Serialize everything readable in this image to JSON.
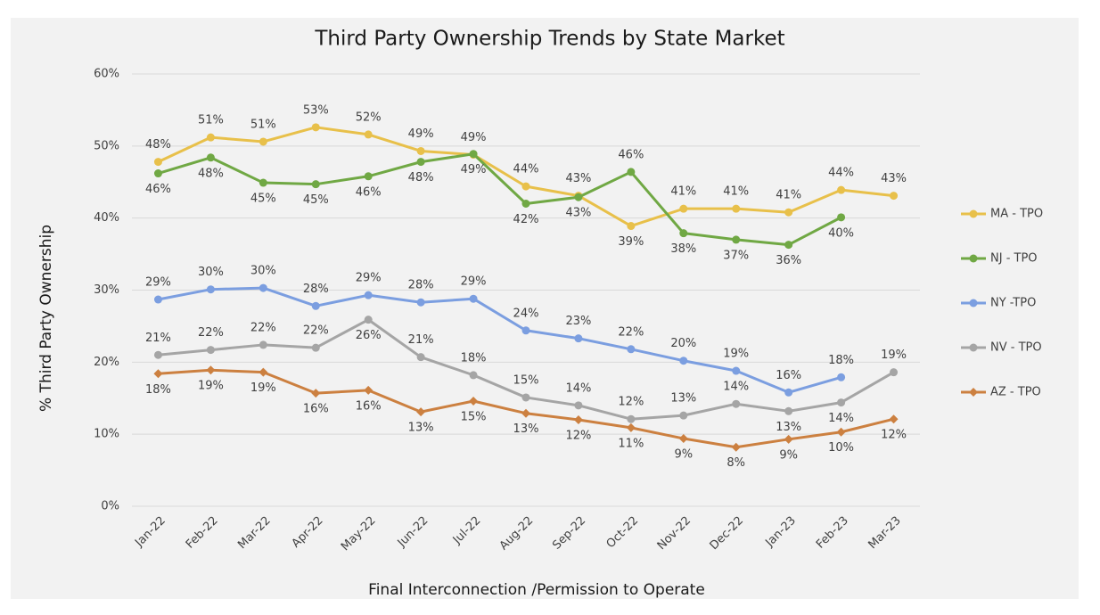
{
  "chart_data": {
    "type": "line",
    "title": "Third Party Ownership Trends by State Market",
    "y_label": "% Third Party Ownership",
    "x_label": "Final Interconnection /Permission to Operate",
    "categories": [
      "Jan-22",
      "Feb-22",
      "Mar-22",
      "Apr-22",
      "May-22",
      "Jun-22",
      "Jul-22",
      "Aug-22",
      "Sep-22",
      "Oct-22",
      "Nov-22",
      "Dec-22",
      "Jan-23",
      "Feb-23",
      "Mar-23"
    ],
    "ylim": [
      0,
      60
    ],
    "yticks": [
      {
        "value": 0,
        "label": "0%"
      },
      {
        "value": 10,
        "label": "10%"
      },
      {
        "value": 20,
        "label": "20%"
      },
      {
        "value": 30,
        "label": "30%"
      },
      {
        "value": 40,
        "label": "40%"
      },
      {
        "value": 50,
        "label": "50%"
      },
      {
        "value": 60,
        "label": "60%"
      }
    ],
    "grid": true,
    "legend": "right",
    "series": [
      {
        "name": "MA - TPO",
        "color": "#e8c04a",
        "marker": "circle",
        "values": [
          47.8,
          51.2,
          50.6,
          52.6,
          51.6,
          49.3,
          48.8,
          44.4,
          43.1,
          38.9,
          41.3,
          41.3,
          40.8,
          43.9,
          43.1
        ],
        "value_labels": [
          "48%",
          "51%",
          "51%",
          "53%",
          "52%",
          "49%",
          "49%",
          "44%",
          "43%",
          "39%",
          "41%",
          "41%",
          "41%",
          "44%",
          "43%"
        ]
      },
      {
        "name": "NJ - TPO",
        "color": "#70a844",
        "marker": "circle",
        "values": [
          46.2,
          48.4,
          44.9,
          44.7,
          45.8,
          47.8,
          48.9,
          42.0,
          42.9,
          46.4,
          37.9,
          37.0,
          36.3,
          40.1,
          null
        ],
        "value_labels": [
          "46%",
          "48%",
          "45%",
          "45%",
          "46%",
          "48%",
          "49%",
          "42%",
          "43%",
          "46%",
          "38%",
          "37%",
          "36%",
          "40%",
          null
        ]
      },
      {
        "name": "NY -TPO",
        "color": "#7b9ee0",
        "marker": "circle",
        "values": [
          28.7,
          30.1,
          30.3,
          27.8,
          29.3,
          28.3,
          28.8,
          24.4,
          23.3,
          21.8,
          20.2,
          18.8,
          15.8,
          17.9,
          null
        ],
        "value_labels": [
          "29%",
          "30%",
          "30%",
          "28%",
          "29%",
          "28%",
          "29%",
          "24%",
          "23%",
          "22%",
          "20%",
          "19%",
          "16%",
          "18%",
          null
        ]
      },
      {
        "name": "NV - TPO",
        "color": "#a5a5a5",
        "marker": "circle",
        "values": [
          21.0,
          21.7,
          22.4,
          22.0,
          25.9,
          20.7,
          18.2,
          15.1,
          14.0,
          12.1,
          12.6,
          14.2,
          13.2,
          14.4,
          18.6
        ],
        "value_labels": [
          "21%",
          "22%",
          "22%",
          "22%",
          "26%",
          "21%",
          "18%",
          "15%",
          "14%",
          "12%",
          "13%",
          "14%",
          "13%",
          "14%",
          "19%"
        ]
      },
      {
        "name": "AZ - TPO",
        "color": "#cc8040",
        "marker": "diamond",
        "values": [
          18.4,
          18.9,
          18.6,
          15.7,
          16.1,
          13.1,
          14.6,
          12.9,
          12.0,
          10.9,
          9.4,
          8.2,
          9.3,
          10.3,
          12.1
        ],
        "value_labels": [
          "18%",
          "19%",
          "19%",
          "16%",
          "16%",
          "13%",
          "15%",
          "13%",
          "12%",
          "11%",
          "9%",
          "8%",
          "9%",
          "10%",
          "12%"
        ]
      }
    ]
  }
}
